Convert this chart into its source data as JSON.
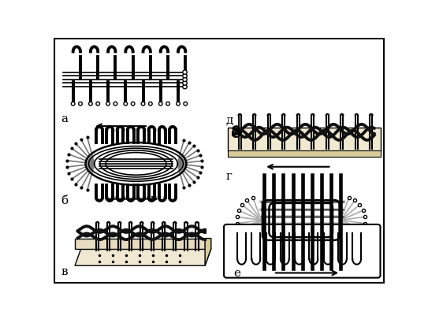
{
  "bg_color": "#ffffff",
  "fig_width": 5.43,
  "fig_height": 4.06,
  "dpi": 100,
  "label_texts": {
    "a": "а",
    "b": "б",
    "v": "в",
    "g": "г",
    "d": "д",
    "e": "е"
  }
}
